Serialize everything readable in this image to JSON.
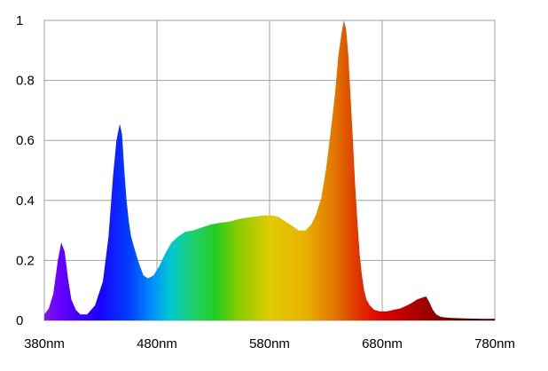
{
  "chart_data": {
    "type": "area",
    "title": "",
    "xlabel": "",
    "ylabel": "",
    "xlim": [
      380,
      780
    ],
    "ylim": [
      0,
      1
    ],
    "grid": true,
    "legend": "none",
    "fill": "wavelength-spectrum-gradient",
    "x_ticks": [
      {
        "value": 380,
        "label": "380nm"
      },
      {
        "value": 480,
        "label": "480nm"
      },
      {
        "value": 580,
        "label": "580nm"
      },
      {
        "value": 680,
        "label": "680nm"
      },
      {
        "value": 780,
        "label": "780nm"
      }
    ],
    "y_ticks": [
      {
        "value": 0,
        "label": "0"
      },
      {
        "value": 0.2,
        "label": "0.2"
      },
      {
        "value": 0.4,
        "label": "0.4"
      },
      {
        "value": 0.6,
        "label": "0.6"
      },
      {
        "value": 0.8,
        "label": "0.8"
      },
      {
        "value": 1,
        "label": "1"
      }
    ],
    "x": [
      380,
      384,
      388,
      392,
      395,
      398,
      401,
      404,
      408,
      412,
      418,
      425,
      432,
      437,
      441,
      444,
      447,
      449,
      451,
      453,
      455,
      457,
      460,
      464,
      468,
      472,
      477,
      482,
      487,
      493,
      499,
      505,
      512,
      520,
      528,
      536,
      545,
      555,
      565,
      575,
      582,
      588,
      594,
      600,
      606,
      612,
      617,
      621,
      626,
      630,
      634,
      638,
      641,
      644,
      646,
      648,
      650,
      652,
      654,
      656,
      658,
      660,
      662,
      664,
      666,
      669,
      673,
      678,
      684,
      690,
      696,
      702,
      707,
      711,
      715,
      719,
      722,
      725,
      728,
      732,
      736,
      742,
      750,
      760,
      770,
      780
    ],
    "y": [
      0.02,
      0.04,
      0.09,
      0.2,
      0.26,
      0.23,
      0.14,
      0.07,
      0.035,
      0.02,
      0.02,
      0.05,
      0.13,
      0.28,
      0.48,
      0.6,
      0.655,
      0.62,
      0.5,
      0.4,
      0.33,
      0.28,
      0.24,
      0.19,
      0.15,
      0.14,
      0.15,
      0.18,
      0.22,
      0.26,
      0.28,
      0.295,
      0.3,
      0.31,
      0.32,
      0.325,
      0.33,
      0.34,
      0.345,
      0.35,
      0.35,
      0.345,
      0.33,
      0.315,
      0.3,
      0.3,
      0.32,
      0.35,
      0.41,
      0.5,
      0.62,
      0.75,
      0.88,
      0.96,
      1.0,
      0.97,
      0.88,
      0.74,
      0.6,
      0.45,
      0.33,
      0.22,
      0.15,
      0.1,
      0.07,
      0.05,
      0.035,
      0.03,
      0.03,
      0.035,
      0.04,
      0.05,
      0.06,
      0.07,
      0.075,
      0.08,
      0.06,
      0.035,
      0.02,
      0.012,
      0.01,
      0.008,
      0.007,
      0.006,
      0.005,
      0.005
    ]
  }
}
